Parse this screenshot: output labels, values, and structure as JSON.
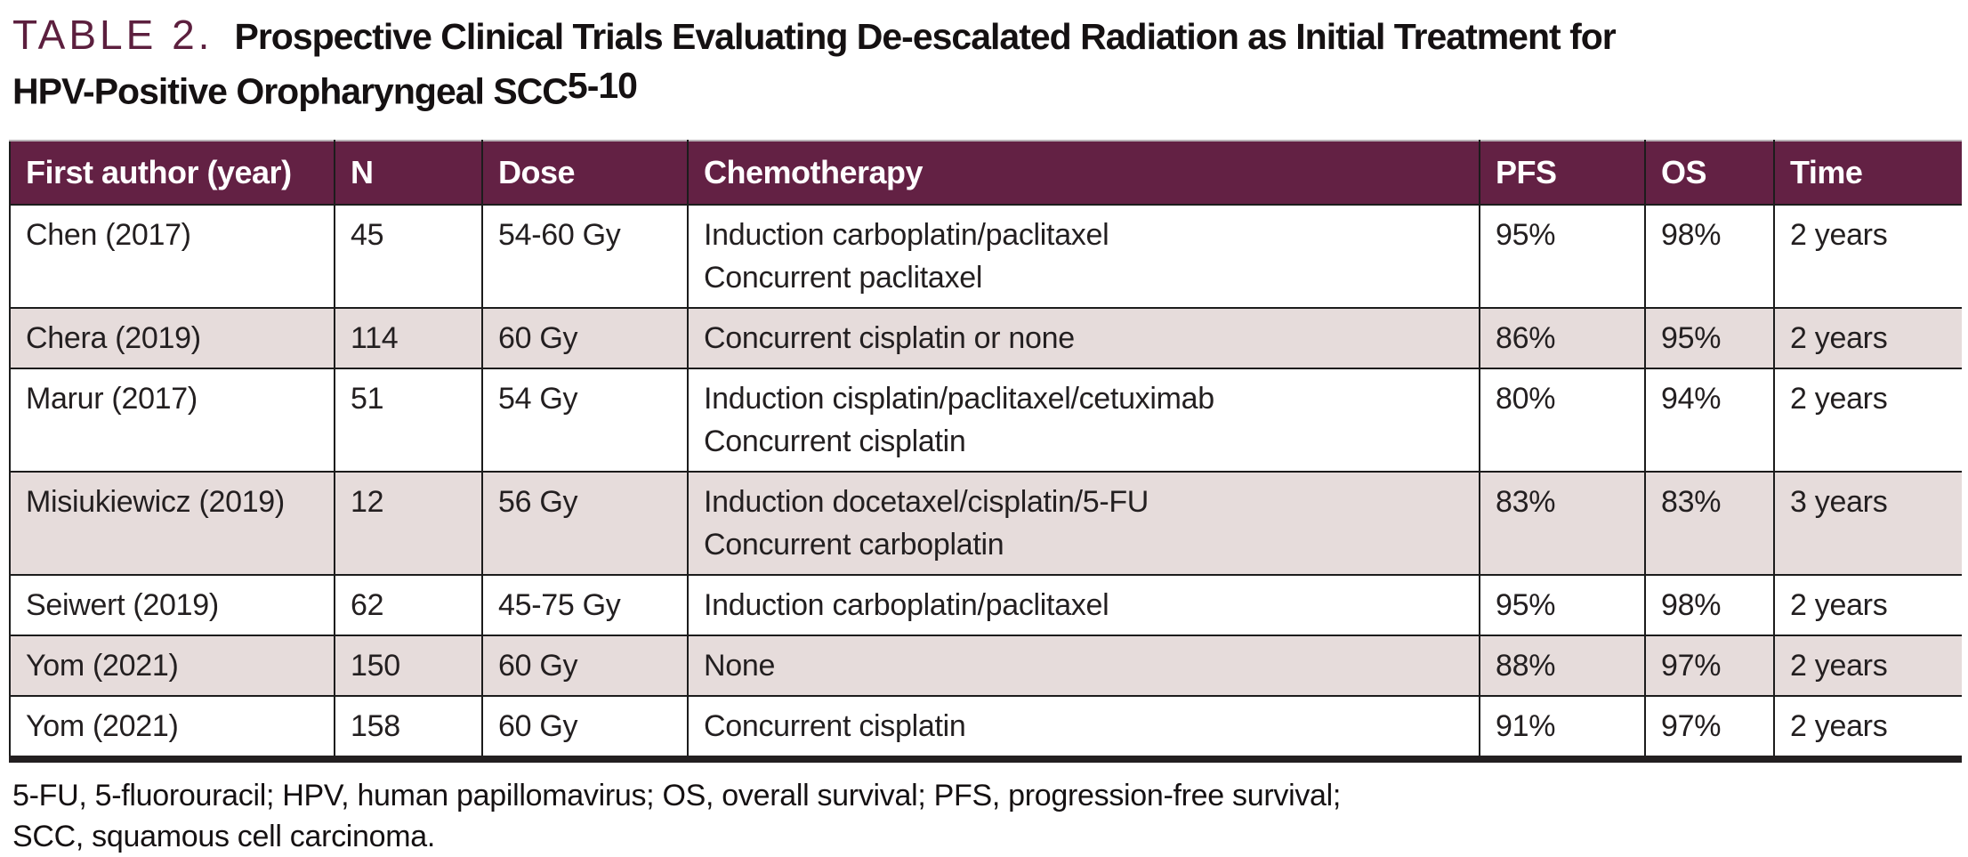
{
  "title": {
    "label": "TABLE 2.",
    "line1": "Prospective Clinical Trials Evaluating De-escalated Radiation as Initial Treatment for",
    "line2": "HPV-Positive Oropharyngeal SCC",
    "superscript": "5-10"
  },
  "table": {
    "columns": [
      "First author (year)",
      "N",
      "Dose",
      "Chemotherapy",
      "PFS",
      "OS",
      "Time"
    ],
    "rows": [
      {
        "author": "Chen (2017)",
        "n": "45",
        "dose": "54-60 Gy",
        "chemo": [
          "Induction carboplatin/paclitaxel",
          "Concurrent paclitaxel"
        ],
        "pfs": "95%",
        "os": "98%",
        "time": "2 years"
      },
      {
        "author": "Chera (2019)",
        "n": "114",
        "dose": "60 Gy",
        "chemo": [
          "Concurrent cisplatin or none"
        ],
        "pfs": "86%",
        "os": "95%",
        "time": "2 years"
      },
      {
        "author": "Marur (2017)",
        "n": "51",
        "dose": "54 Gy",
        "chemo": [
          "Induction cisplatin/paclitaxel/cetuximab",
          "Concurrent cisplatin"
        ],
        "pfs": "80%",
        "os": "94%",
        "time": "2 years"
      },
      {
        "author": "Misiukiewicz (2019)",
        "n": "12",
        "dose": "56 Gy",
        "chemo": [
          "Induction docetaxel/cisplatin/5-FU",
          "Concurrent carboplatin"
        ],
        "pfs": "83%",
        "os": "83%",
        "time": "3 years"
      },
      {
        "author": "Seiwert (2019)",
        "n": "62",
        "dose": "45-75 Gy",
        "chemo": [
          "Induction carboplatin/paclitaxel"
        ],
        "pfs": "95%",
        "os": "98%",
        "time": "2 years"
      },
      {
        "author": "Yom (2021)",
        "n": "150",
        "dose": "60 Gy",
        "chemo": [
          "None"
        ],
        "pfs": "88%",
        "os": "97%",
        "time": "2 years"
      },
      {
        "author": "Yom (2021)",
        "n": "158",
        "dose": "60 Gy",
        "chemo": [
          "Concurrent cisplatin"
        ],
        "pfs": "91%",
        "os": "97%",
        "time": "2 years"
      }
    ]
  },
  "footnote": {
    "line1": "5-FU, 5-fluorouracil; HPV, human papillomavirus; OS, overall survival; PFS, progression-free survival;",
    "line2": "SCC, squamous cell carcinoma."
  },
  "colors": {
    "header_background": "#632144",
    "table_label": "#5c1f3e",
    "shaded_row": "#e6dcdb",
    "rule": "#1c1c1c",
    "bottom_rule": "#231f20"
  }
}
